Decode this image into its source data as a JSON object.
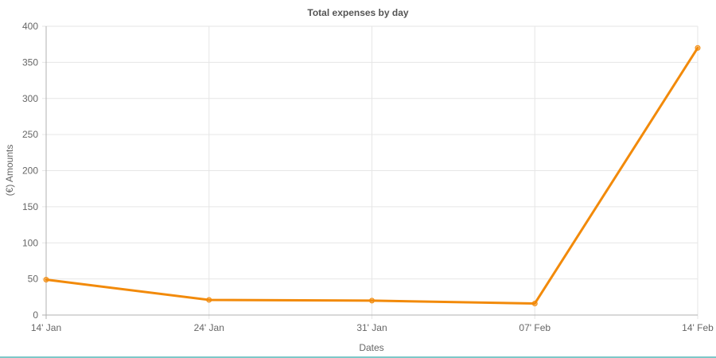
{
  "chart_data": {
    "type": "line",
    "title": "Total expenses by day",
    "xlabel": "Dates",
    "ylabel": "(€) Amounts",
    "categories": [
      "14' Jan",
      "24' Jan",
      "31' Jan",
      "07' Feb",
      "14' Feb"
    ],
    "series": [
      {
        "values": [
          49,
          21,
          20,
          16,
          370
        ],
        "color": "#f28a0a"
      }
    ],
    "ylim": [
      0,
      400
    ],
    "yticks": [
      "0",
      "50",
      "100",
      "150",
      "200",
      "250",
      "300",
      "350",
      "400"
    ],
    "grid": true,
    "legend": "none"
  }
}
